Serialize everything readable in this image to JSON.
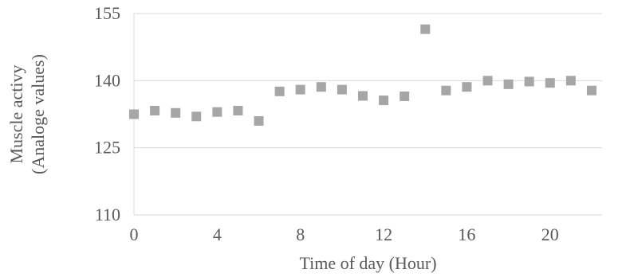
{
  "chart_data": {
    "type": "scatter",
    "title": "",
    "xlabel": "Time of day (Hour)",
    "ylabel": [
      "Muscle activy",
      "(Analoge values)"
    ],
    "xlim": [
      0,
      22.5
    ],
    "ylim": [
      110,
      155
    ],
    "xticks": [
      0,
      4,
      8,
      12,
      16,
      20
    ],
    "yticks": [
      110,
      125,
      140,
      155
    ],
    "grid": "horizontal",
    "legend": "none",
    "marker": "square",
    "color": "#a6a6a6",
    "series": [
      {
        "x": [
          0,
          1,
          2,
          3,
          4,
          5,
          6,
          7,
          8,
          9,
          10,
          11,
          12,
          13,
          14,
          15,
          16,
          17,
          18,
          19,
          20,
          21,
          22
        ],
        "y": [
          132.5,
          133.3,
          132.8,
          132.0,
          133.0,
          133.3,
          131.0,
          137.6,
          138.0,
          138.6,
          138.0,
          136.6,
          135.6,
          136.5,
          151.5,
          137.8,
          138.6,
          140.0,
          139.2,
          139.8,
          139.5,
          140.0,
          137.8
        ]
      }
    ]
  }
}
